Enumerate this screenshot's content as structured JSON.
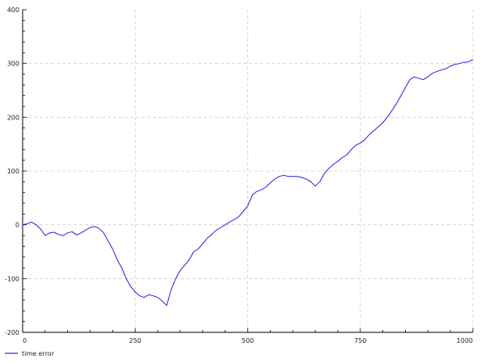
{
  "chart_data": {
    "type": "line",
    "title": "",
    "xlabel": "",
    "ylabel": "",
    "xlim": [
      0,
      1000
    ],
    "ylim": [
      -200,
      400
    ],
    "x_ticks": [
      0,
      250,
      500,
      750,
      1000
    ],
    "y_ticks": [
      -200,
      -100,
      0,
      100,
      200,
      300,
      400
    ],
    "x_tick_labels": [
      "0",
      "250",
      "500",
      "750",
      "1000"
    ],
    "y_tick_labels": [
      "-200",
      "-100",
      "0",
      "100",
      "200",
      "300",
      "400"
    ],
    "grid": true,
    "legend": {
      "placement": "bottom-left"
    },
    "series": [
      {
        "name": "time error",
        "color": "#1f1fe6",
        "x": [
          0,
          10,
          20,
          30,
          40,
          50,
          60,
          70,
          80,
          90,
          100,
          110,
          120,
          130,
          140,
          150,
          160,
          170,
          180,
          190,
          200,
          210,
          220,
          230,
          240,
          250,
          260,
          270,
          280,
          290,
          300,
          310,
          320,
          330,
          340,
          350,
          360,
          370,
          380,
          390,
          400,
          410,
          420,
          430,
          440,
          450,
          460,
          470,
          480,
          490,
          500,
          510,
          520,
          530,
          540,
          550,
          560,
          570,
          580,
          590,
          600,
          610,
          620,
          630,
          640,
          650,
          660,
          670,
          680,
          690,
          700,
          710,
          720,
          730,
          740,
          750,
          760,
          770,
          780,
          790,
          800,
          810,
          820,
          830,
          840,
          850,
          860,
          870,
          880,
          890,
          900,
          910,
          920,
          930,
          940,
          950,
          960,
          970,
          980,
          990,
          1000
        ],
        "values": [
          0,
          2,
          5,
          0,
          -8,
          -20,
          -15,
          -14,
          -18,
          -20,
          -15,
          -13,
          -19,
          -15,
          -10,
          -5,
          -3,
          -7,
          -15,
          -30,
          -45,
          -65,
          -80,
          -100,
          -115,
          -125,
          -132,
          -135,
          -130,
          -132,
          -135,
          -142,
          -150,
          -120,
          -100,
          -85,
          -75,
          -65,
          -50,
          -45,
          -35,
          -25,
          -18,
          -10,
          -5,
          0,
          5,
          10,
          15,
          25,
          35,
          55,
          62,
          65,
          70,
          78,
          85,
          90,
          92,
          90,
          90,
          90,
          88,
          85,
          80,
          72,
          80,
          95,
          105,
          112,
          118,
          125,
          130,
          140,
          148,
          152,
          158,
          168,
          175,
          182,
          190,
          200,
          212,
          225,
          240,
          255,
          270,
          275,
          272,
          270,
          275,
          282,
          285,
          288,
          290,
          295,
          298,
          300,
          302,
          303,
          307
        ]
      }
    ]
  }
}
